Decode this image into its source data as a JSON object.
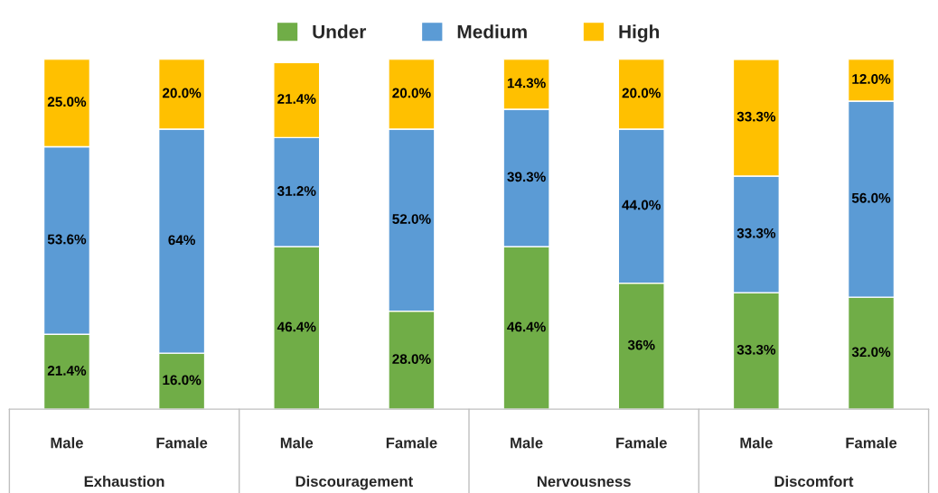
{
  "chart_data": {
    "type": "bar",
    "stacked": true,
    "legend": "top",
    "categories": [
      "Male",
      "Famale",
      "Male",
      "Famale",
      "Male",
      "Famale",
      "Male",
      "Famale"
    ],
    "annotations": [
      "Exhaustion",
      "Discouragement",
      "Nervousness",
      "Discomfort"
    ],
    "series": [
      {
        "name": "Under",
        "color": "#70ad47",
        "values": [
          21.4,
          16.0,
          46.4,
          28.0,
          46.4,
          36,
          33.3,
          32.0
        ],
        "value_labels": [
          "21.4%",
          "16.0%",
          "46.4%",
          "28.0%",
          "46.4%",
          "36%",
          "33.3%",
          "32.0%"
        ]
      },
      {
        "name": "Medium",
        "color": "#5b9bd5",
        "values": [
          53.6,
          64,
          31.2,
          52.0,
          39.3,
          44.0,
          33.3,
          56.0
        ],
        "value_labels": [
          "53.6%",
          "64%",
          "31.2%",
          "52.0%",
          "39.3%",
          "44.0%",
          "33.3%",
          "56.0%"
        ]
      },
      {
        "name": "High",
        "color": "#ffc000",
        "values": [
          25.0,
          20.0,
          21.4,
          20.0,
          14.3,
          20.0,
          33.3,
          12.0
        ],
        "value_labels": [
          "25.0%",
          "20.0%",
          "21.4%",
          "20.0%",
          "14.3%",
          "20.0%",
          "33.3%",
          "12.0%"
        ]
      }
    ]
  }
}
